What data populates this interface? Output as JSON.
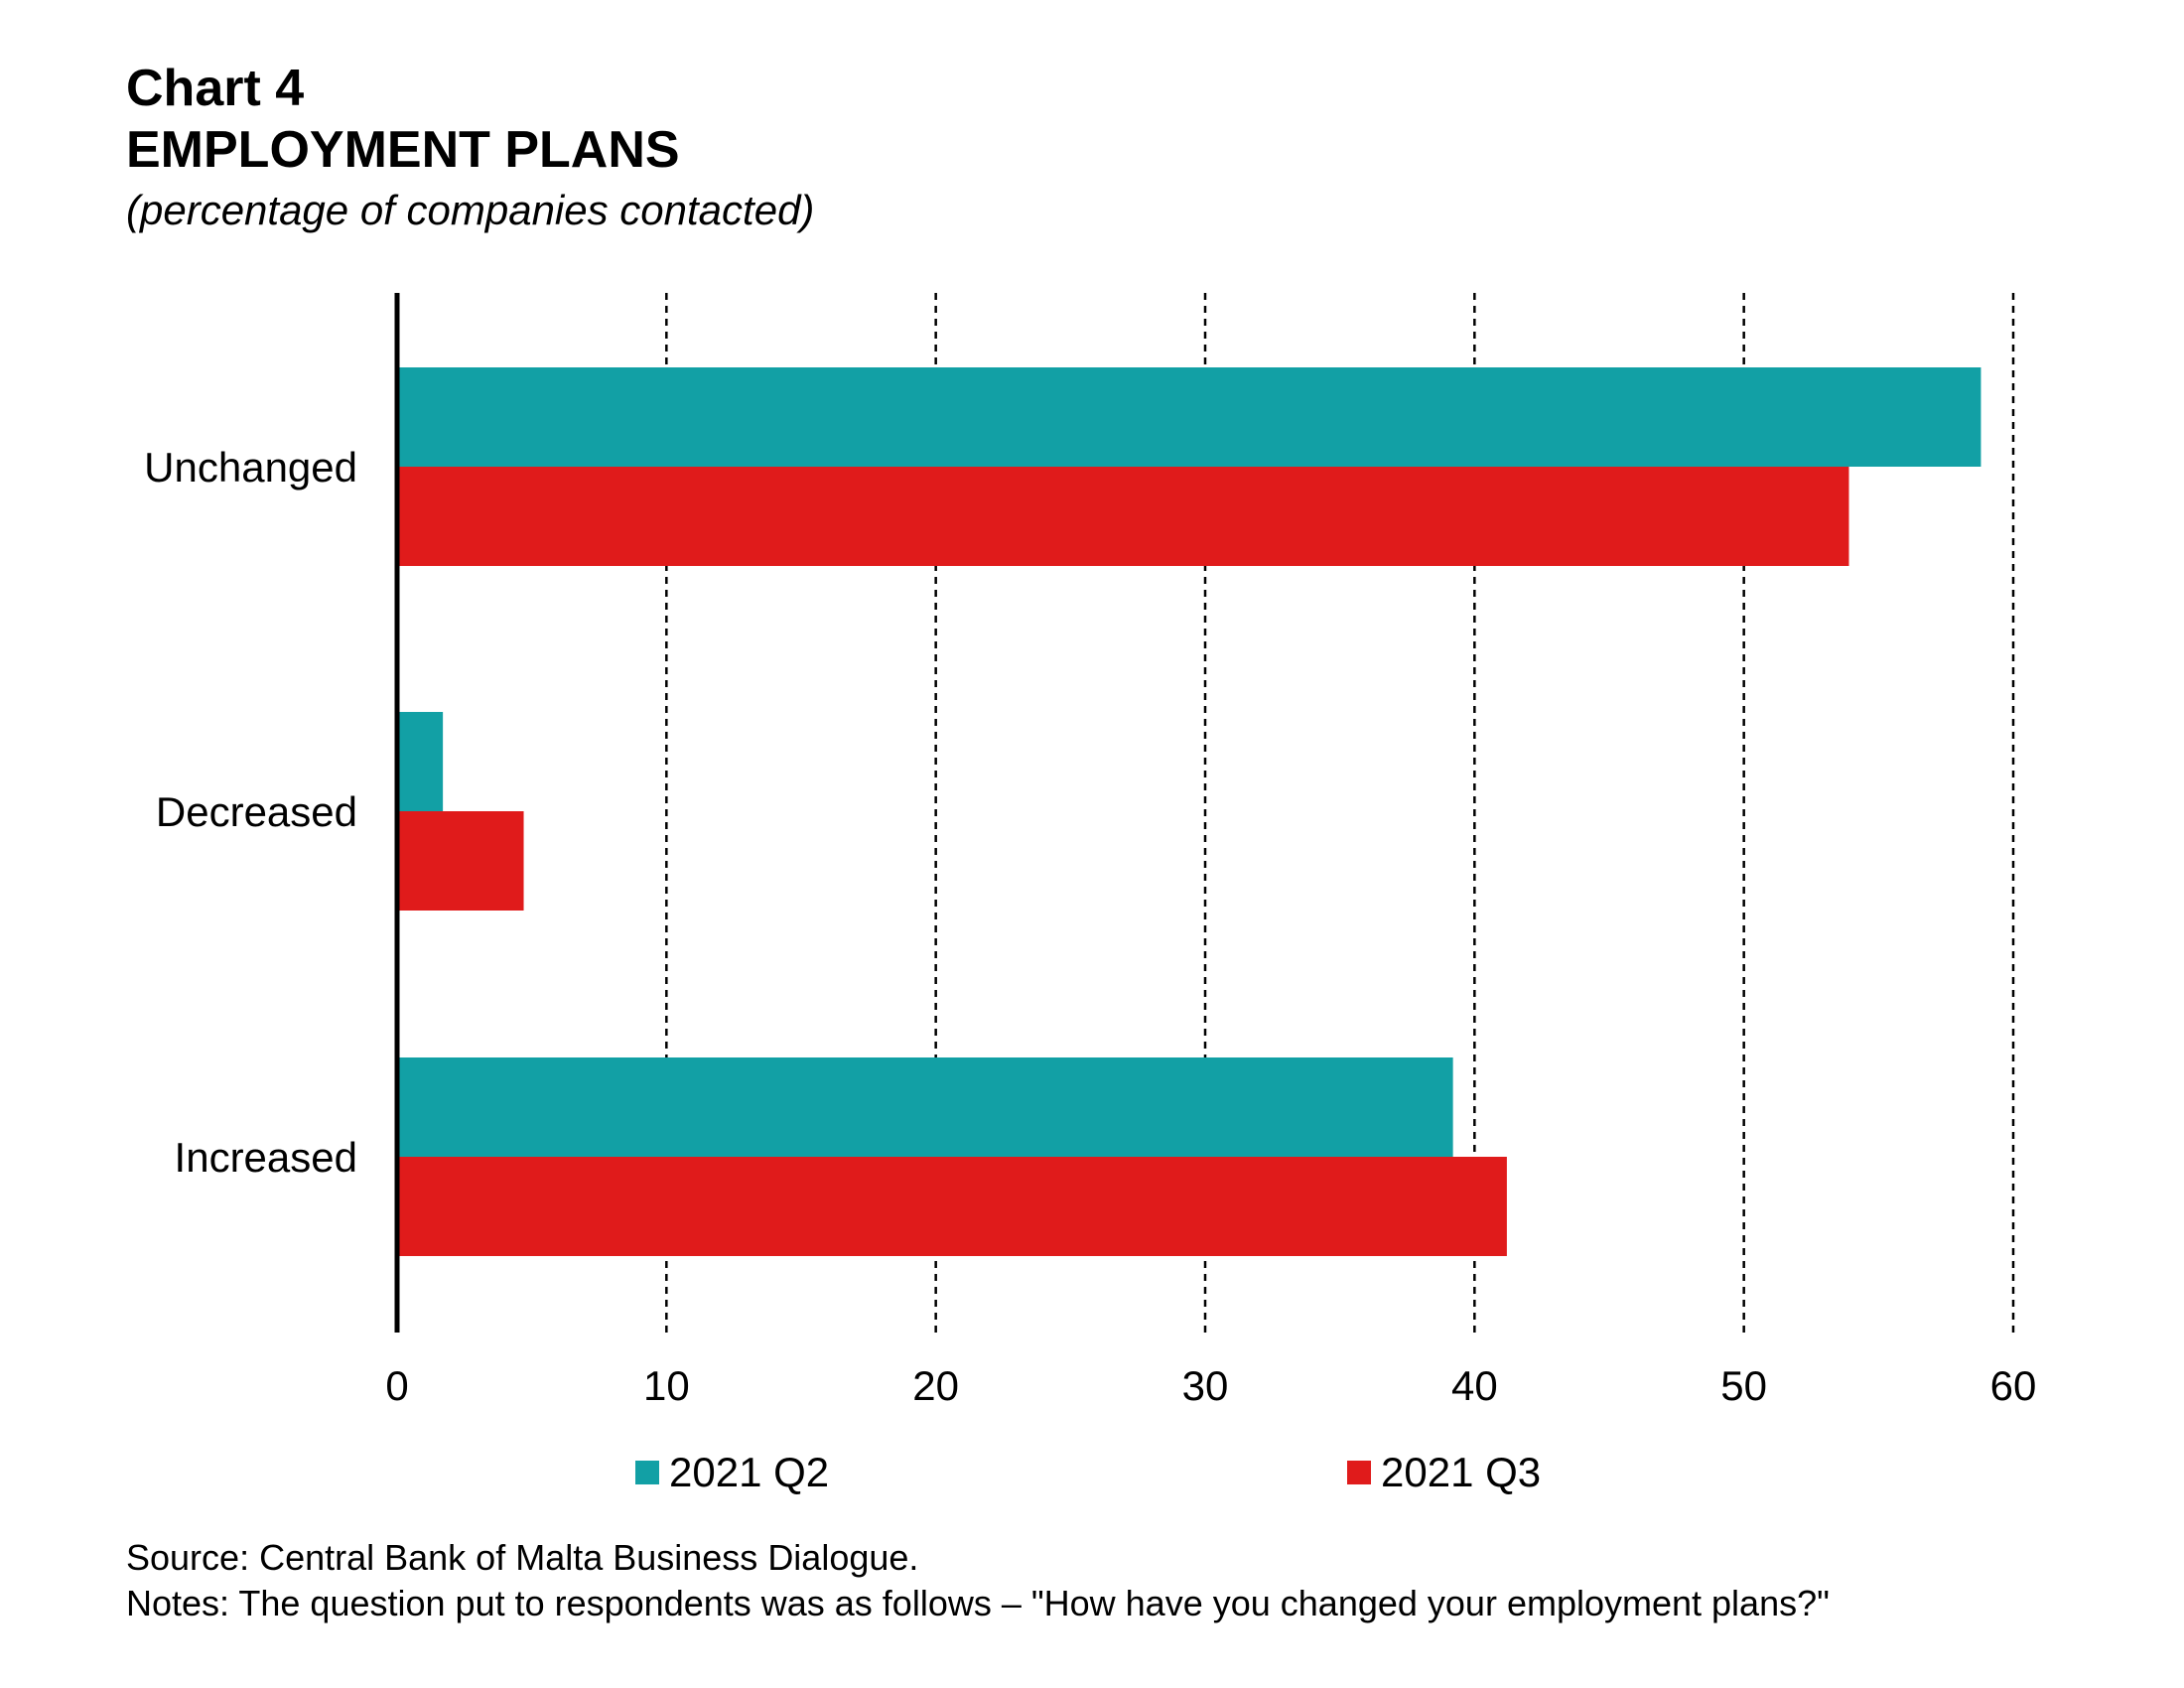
{
  "header": {
    "chart_number": "Chart 4",
    "title": "EMPLOYMENT PLANS",
    "subtitle": "(percentage of companies contacted)"
  },
  "footer": {
    "source": "Source: Central Bank of Malta Business Dialogue.",
    "notes": "Notes: The question put to respondents was as follows – \"How have you changed your employment plans?\""
  },
  "colors": {
    "q2": "#12A0A5",
    "q3": "#E01B1B"
  },
  "chart_data": {
    "type": "bar",
    "orientation": "horizontal",
    "title": "EMPLOYMENT PLANS",
    "subtitle": "(percentage of companies contacted)",
    "categories": [
      "Unchanged",
      "Decreased",
      "Increased"
    ],
    "series": [
      {
        "name": "2021 Q2",
        "values": [
          58.8,
          1.7,
          39.2
        ]
      },
      {
        "name": "2021 Q3",
        "values": [
          53.9,
          4.7,
          41.2
        ]
      }
    ],
    "xlim": [
      0,
      60
    ],
    "xticks": [
      0,
      10,
      20,
      30,
      40,
      50,
      60
    ],
    "xlabel": "",
    "ylabel": "",
    "grid": "vertical dashed",
    "legend_position": "bottom"
  }
}
